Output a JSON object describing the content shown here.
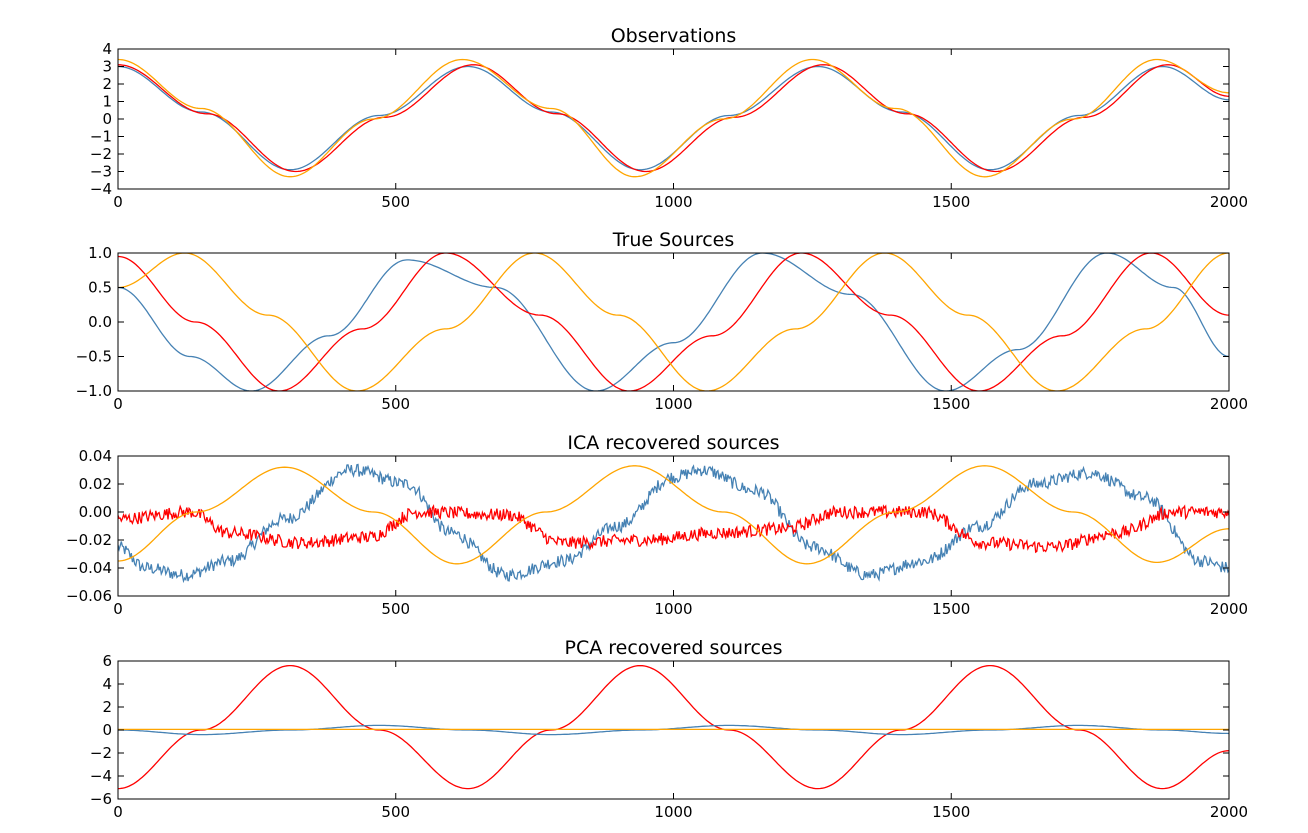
{
  "chart_data": [
    {
      "type": "line",
      "title": "Observations",
      "xlim": [
        0,
        2000
      ],
      "ylim": [
        -4,
        4
      ],
      "xticks": [
        "0",
        "500",
        "1000",
        "1500",
        "2000"
      ],
      "yticks": [
        "4",
        "3",
        "2",
        "1",
        "0",
        "−1",
        "−2",
        "−3",
        "−4"
      ],
      "grid": false,
      "series": [
        {
          "color": "#4682b4",
          "x": [
            0,
            150,
            310,
            470,
            630,
            780,
            940,
            1100,
            1260,
            1410,
            1570,
            1730,
            1880,
            2000
          ],
          "values": [
            3.0,
            0.4,
            -2.9,
            0.2,
            3.0,
            0.4,
            -2.9,
            0.2,
            3.0,
            0.4,
            -2.9,
            0.2,
            3.0,
            1.1
          ]
        },
        {
          "color": "#ff0000",
          "x": [
            0,
            160,
            320,
            480,
            640,
            790,
            950,
            1110,
            1270,
            1420,
            1580,
            1740,
            1890,
            2000
          ],
          "values": [
            3.1,
            0.3,
            -3.0,
            0.1,
            3.1,
            0.3,
            -3.0,
            0.1,
            3.1,
            0.3,
            -3.0,
            0.1,
            3.1,
            1.3
          ]
        },
        {
          "color": "#ffa500",
          "x": [
            0,
            150,
            310,
            460,
            620,
            780,
            930,
            1090,
            1250,
            1400,
            1560,
            1720,
            1870,
            2000
          ],
          "values": [
            3.4,
            0.6,
            -3.3,
            0.0,
            3.4,
            0.6,
            -3.3,
            0.0,
            3.4,
            0.6,
            -3.3,
            0.0,
            3.4,
            1.5
          ]
        }
      ]
    },
    {
      "type": "line",
      "title": "True Sources",
      "xlim": [
        0,
        2000
      ],
      "ylim": [
        -1,
        1
      ],
      "xticks": [
        "0",
        "500",
        "1000",
        "1500",
        "2000"
      ],
      "yticks": [
        "1.0",
        "0.5",
        "0.0",
        "−0.5",
        "−1.0"
      ],
      "grid": false,
      "series": [
        {
          "color": "#4682b4",
          "x": [
            0,
            130,
            240,
            380,
            520,
            680,
            860,
            1000,
            1160,
            1320,
            1490,
            1620,
            1780,
            1900,
            2000
          ],
          "values": [
            0.5,
            -0.5,
            -1.0,
            -0.2,
            0.9,
            0.5,
            -1.0,
            -0.3,
            1.0,
            0.4,
            -1.0,
            -0.4,
            1.0,
            0.5,
            -0.5
          ]
        },
        {
          "color": "#ff0000",
          "x": [
            0,
            140,
            290,
            440,
            590,
            760,
            920,
            1070,
            1230,
            1390,
            1550,
            1700,
            1860,
            2000
          ],
          "values": [
            0.95,
            0.0,
            -1.0,
            -0.1,
            1.0,
            0.1,
            -1.0,
            -0.2,
            1.0,
            0.1,
            -1.0,
            -0.2,
            1.0,
            0.1
          ]
        },
        {
          "color": "#ffa500",
          "x": [
            0,
            120,
            270,
            430,
            590,
            750,
            900,
            1060,
            1220,
            1380,
            1530,
            1690,
            1850,
            2000
          ],
          "values": [
            0.5,
            1.0,
            0.1,
            -1.0,
            -0.1,
            1.0,
            0.1,
            -1.0,
            -0.1,
            1.0,
            0.1,
            -1.0,
            -0.1,
            1.0
          ]
        }
      ]
    },
    {
      "type": "line",
      "title": "ICA recovered sources",
      "xlim": [
        0,
        2000
      ],
      "ylim": [
        -0.06,
        0.04
      ],
      "xticks": [
        "0",
        "500",
        "1000",
        "1500",
        "2000"
      ],
      "yticks": [
        "0.04",
        "0.02",
        "0.00",
        "−0.02",
        "−0.04",
        "−0.06"
      ],
      "grid": false,
      "series": [
        {
          "color": "#4682b4",
          "noisy": true,
          "x": [
            0,
            50,
            120,
            200,
            300,
            420,
            520,
            600,
            700,
            800,
            900,
            1000,
            1050,
            1150,
            1250,
            1350,
            1450,
            1550,
            1650,
            1750,
            1850,
            1950,
            2000
          ],
          "values": [
            -0.025,
            -0.04,
            -0.045,
            -0.035,
            -0.005,
            0.03,
            0.02,
            -0.015,
            -0.045,
            -0.035,
            -0.01,
            0.025,
            0.03,
            0.015,
            -0.025,
            -0.045,
            -0.035,
            -0.01,
            0.02,
            0.028,
            0.01,
            -0.035,
            -0.04
          ]
        },
        {
          "color": "#ff0000",
          "noisy": true,
          "x": [
            0,
            130,
            200,
            330,
            450,
            540,
            700,
            800,
            950,
            1080,
            1200,
            1300,
            1450,
            1560,
            1680,
            1800,
            1900,
            2000
          ],
          "values": [
            -0.005,
            0.0,
            -0.015,
            -0.022,
            -0.018,
            0.0,
            -0.002,
            -0.022,
            -0.02,
            -0.015,
            -0.012,
            0.0,
            0.0,
            -0.022,
            -0.025,
            -0.015,
            0.0,
            0.0
          ]
        },
        {
          "color": "#ffa500",
          "noisy": false,
          "x": [
            0,
            140,
            300,
            460,
            610,
            770,
            930,
            1090,
            1240,
            1400,
            1560,
            1720,
            1870,
            2000
          ],
          "values": [
            -0.035,
            0.0,
            0.032,
            0.0,
            -0.037,
            0.0,
            0.033,
            0.0,
            -0.037,
            0.0,
            0.033,
            0.0,
            -0.036,
            -0.012
          ]
        }
      ]
    },
    {
      "type": "line",
      "title": "PCA recovered sources",
      "xlim": [
        0,
        2000
      ],
      "ylim": [
        -6,
        6
      ],
      "xticks": [
        "0",
        "500",
        "1000",
        "1500",
        "2000"
      ],
      "yticks": [
        "6",
        "4",
        "2",
        "0",
        "−2",
        "−4",
        "−6"
      ],
      "grid": false,
      "series": [
        {
          "color": "#ff0000",
          "x": [
            0,
            150,
            310,
            470,
            630,
            780,
            940,
            1100,
            1260,
            1410,
            1570,
            1730,
            1880,
            2000
          ],
          "values": [
            -5.1,
            0.0,
            5.6,
            0.0,
            -5.1,
            0.0,
            5.6,
            0.0,
            -5.1,
            0.0,
            5.6,
            0.0,
            -5.1,
            -1.8
          ]
        },
        {
          "color": "#4682b4",
          "x": [
            0,
            150,
            310,
            470,
            630,
            780,
            940,
            1100,
            1260,
            1410,
            1570,
            1730,
            1880,
            2000
          ],
          "values": [
            0.0,
            -0.4,
            0.0,
            0.4,
            0.0,
            -0.4,
            0.0,
            0.4,
            0.0,
            -0.4,
            0.0,
            0.4,
            0.0,
            -0.3
          ]
        },
        {
          "color": "#ffa500",
          "x": [
            0,
            2000
          ],
          "values": [
            0.05,
            0.05
          ]
        }
      ]
    }
  ]
}
